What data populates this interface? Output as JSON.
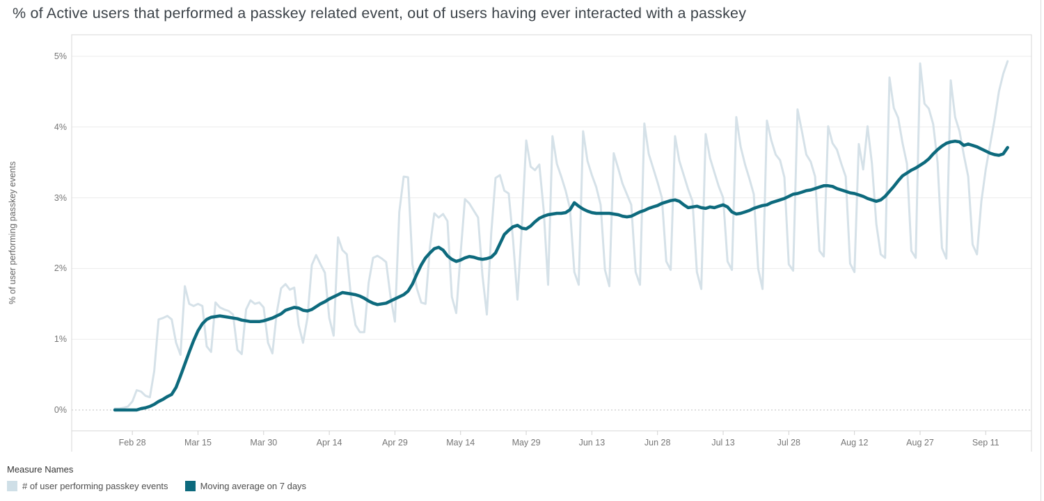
{
  "title": "% of Active users that performed a passkey related event, out of users having ever interacted with a passkey",
  "y_axis": {
    "label": "% of user performing passkey events",
    "ticks": [
      {
        "value": 0,
        "label": "0%"
      },
      {
        "value": 1,
        "label": "1%"
      },
      {
        "value": 2,
        "label": "2%"
      },
      {
        "value": 3,
        "label": "3%"
      },
      {
        "value": 4,
        "label": "4%"
      },
      {
        "value": 5,
        "label": "5%"
      }
    ]
  },
  "x_axis": {
    "ticks": [
      {
        "day": 4,
        "label": "Feb 28"
      },
      {
        "day": 19,
        "label": "Mar 15"
      },
      {
        "day": 34,
        "label": "Mar 30"
      },
      {
        "day": 49,
        "label": "Apr 14"
      },
      {
        "day": 64,
        "label": "Apr 29"
      },
      {
        "day": 79,
        "label": "May 14"
      },
      {
        "day": 94,
        "label": "May 29"
      },
      {
        "day": 109,
        "label": "Jun 13"
      },
      {
        "day": 124,
        "label": "Jun 28"
      },
      {
        "day": 139,
        "label": "Jul 13"
      },
      {
        "day": 154,
        "label": "Jul 28"
      },
      {
        "day": 169,
        "label": "Aug 12"
      },
      {
        "day": 184,
        "label": "Aug 27"
      },
      {
        "day": 199,
        "label": "Sep 11"
      }
    ]
  },
  "legend": {
    "title": "Measure Names",
    "items": [
      {
        "label": "# of user performing passkey events",
        "color": "#cfdfe7"
      },
      {
        "label": "Moving average on 7 days",
        "color": "#0d6a7d"
      }
    ]
  },
  "colors": {
    "daily_line": "#d5e1e8",
    "moving_avg_line": "#0d6a7d",
    "gridline": "#ebebeb",
    "zero_line": "#c9c9c9",
    "border": "#d7d7d7",
    "tick_text": "#757575",
    "title_text": "#3b4248"
  },
  "chart_data": {
    "type": "line",
    "x_unit": "day",
    "x_start_label": "Feb 24",
    "x_end_label": "Sep 16",
    "ylim": [
      0,
      5
    ],
    "grid": "horizontal",
    "legend_position": "bottom-left",
    "series": [
      {
        "name": "# of user performing passkey events",
        "values": [
          0.02,
          0.02,
          0.03,
          0.05,
          0.12,
          0.28,
          0.26,
          0.2,
          0.18,
          0.55,
          1.28,
          1.3,
          1.33,
          1.28,
          0.95,
          0.78,
          1.75,
          1.5,
          1.47,
          1.5,
          1.47,
          0.9,
          0.82,
          1.52,
          1.45,
          1.42,
          1.4,
          1.35,
          0.85,
          0.79,
          1.42,
          1.55,
          1.5,
          1.52,
          1.45,
          0.95,
          0.8,
          1.38,
          1.72,
          1.78,
          1.7,
          1.73,
          1.2,
          0.95,
          1.3,
          2.05,
          2.19,
          2.06,
          1.94,
          1.3,
          1.05,
          2.44,
          2.26,
          2.2,
          1.58,
          1.2,
          1.1,
          1.1,
          1.8,
          2.15,
          2.18,
          2.14,
          2.09,
          1.6,
          1.25,
          2.8,
          3.3,
          3.29,
          2.06,
          1.72,
          1.52,
          1.5,
          2.3,
          2.78,
          2.72,
          2.77,
          2.67,
          1.6,
          1.37,
          2.2,
          2.98,
          2.92,
          2.82,
          2.72,
          1.9,
          1.35,
          2.5,
          3.28,
          3.32,
          3.1,
          3.06,
          2.4,
          1.56,
          2.6,
          3.81,
          3.44,
          3.39,
          3.47,
          2.82,
          1.77,
          3.87,
          3.48,
          3.3,
          3.1,
          2.85,
          1.95,
          1.77,
          3.94,
          3.52,
          3.32,
          3.15,
          2.9,
          1.98,
          1.75,
          3.63,
          3.42,
          3.2,
          3.05,
          2.9,
          1.95,
          1.77,
          4.05,
          3.62,
          3.42,
          3.22,
          3.0,
          2.1,
          1.98,
          3.87,
          3.52,
          3.32,
          3.12,
          2.95,
          1.95,
          1.71,
          3.9,
          3.56,
          3.36,
          3.16,
          3.0,
          2.1,
          1.98,
          4.14,
          3.72,
          3.47,
          3.27,
          3.05,
          2.0,
          1.71,
          4.09,
          3.81,
          3.61,
          3.53,
          3.29,
          2.06,
          1.97,
          4.25,
          3.94,
          3.61,
          3.51,
          3.3,
          2.25,
          2.17,
          4.01,
          3.77,
          3.68,
          3.48,
          3.3,
          2.07,
          1.95,
          3.76,
          3.4,
          4.01,
          3.48,
          2.63,
          2.2,
          2.15,
          4.7,
          4.27,
          4.13,
          3.77,
          3.48,
          2.25,
          2.15,
          4.9,
          4.33,
          4.26,
          4.04,
          3.5,
          2.29,
          2.14,
          4.66,
          4.14,
          3.94,
          3.6,
          3.3,
          2.34,
          2.2,
          2.95,
          3.4,
          3.75,
          4.1,
          4.5,
          4.75,
          4.93
        ]
      },
      {
        "name": "Moving average on 7 days",
        "values": [
          0.0,
          0.0,
          0.0,
          0.0,
          0.0,
          0.0,
          0.02,
          0.03,
          0.05,
          0.08,
          0.12,
          0.15,
          0.19,
          0.22,
          0.32,
          0.48,
          0.65,
          0.82,
          0.98,
          1.12,
          1.22,
          1.28,
          1.31,
          1.32,
          1.33,
          1.32,
          1.31,
          1.3,
          1.29,
          1.27,
          1.26,
          1.25,
          1.25,
          1.25,
          1.26,
          1.28,
          1.3,
          1.33,
          1.36,
          1.41,
          1.43,
          1.45,
          1.44,
          1.41,
          1.4,
          1.42,
          1.46,
          1.5,
          1.53,
          1.57,
          1.6,
          1.63,
          1.66,
          1.65,
          1.64,
          1.63,
          1.61,
          1.58,
          1.54,
          1.51,
          1.49,
          1.5,
          1.51,
          1.54,
          1.57,
          1.6,
          1.63,
          1.68,
          1.78,
          1.92,
          2.05,
          2.15,
          2.22,
          2.28,
          2.3,
          2.26,
          2.18,
          2.13,
          2.1,
          2.12,
          2.15,
          2.17,
          2.16,
          2.14,
          2.13,
          2.14,
          2.16,
          2.22,
          2.35,
          2.48,
          2.54,
          2.59,
          2.61,
          2.57,
          2.56,
          2.6,
          2.66,
          2.71,
          2.74,
          2.76,
          2.77,
          2.78,
          2.78,
          2.79,
          2.83,
          2.93,
          2.88,
          2.84,
          2.81,
          2.79,
          2.78,
          2.78,
          2.78,
          2.78,
          2.77,
          2.76,
          2.74,
          2.73,
          2.74,
          2.77,
          2.8,
          2.82,
          2.85,
          2.87,
          2.89,
          2.92,
          2.94,
          2.96,
          2.97,
          2.95,
          2.9,
          2.86,
          2.87,
          2.88,
          2.86,
          2.85,
          2.87,
          2.86,
          2.88,
          2.9,
          2.87,
          2.8,
          2.77,
          2.78,
          2.8,
          2.82,
          2.85,
          2.87,
          2.89,
          2.9,
          2.93,
          2.95,
          2.97,
          2.99,
          3.02,
          3.05,
          3.06,
          3.08,
          3.1,
          3.11,
          3.13,
          3.15,
          3.17,
          3.17,
          3.16,
          3.13,
          3.11,
          3.09,
          3.07,
          3.06,
          3.04,
          3.02,
          2.99,
          2.97,
          2.95,
          2.97,
          3.02,
          3.09,
          3.16,
          3.24,
          3.31,
          3.35,
          3.39,
          3.42,
          3.46,
          3.5,
          3.55,
          3.62,
          3.68,
          3.73,
          3.77,
          3.79,
          3.8,
          3.79,
          3.74,
          3.76,
          3.74,
          3.72,
          3.69,
          3.66,
          3.63,
          3.61,
          3.6,
          3.62,
          3.71
        ]
      }
    ]
  }
}
